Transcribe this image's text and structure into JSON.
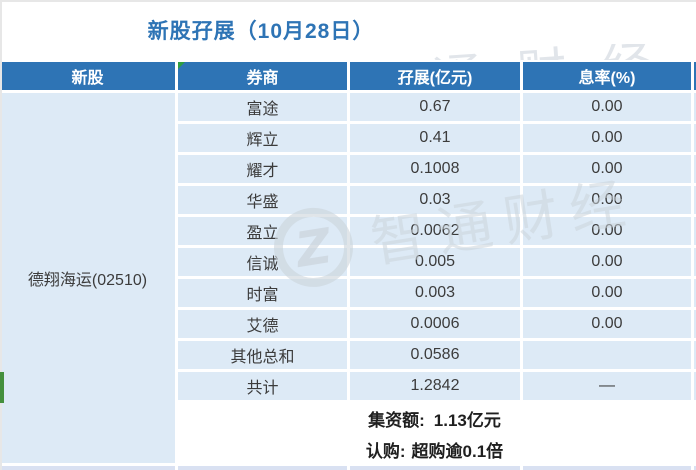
{
  "title": "新股孖展（10月28日）",
  "chart_data": {
    "type": "table",
    "title": "新股孖展（10月28日）",
    "columns": [
      "新股",
      "券商",
      "孖展(亿元)",
      "息率(%)"
    ],
    "stock": "德翔海运(02510)",
    "rows": [
      {
        "broker": "富途",
        "margin_yi": "0.67",
        "rate_pct": "0.00"
      },
      {
        "broker": "辉立",
        "margin_yi": "0.41",
        "rate_pct": "0.00"
      },
      {
        "broker": "耀才",
        "margin_yi": "0.1008",
        "rate_pct": "0.00"
      },
      {
        "broker": "华盛",
        "margin_yi": "0.03",
        "rate_pct": "0.00"
      },
      {
        "broker": "盈立",
        "margin_yi": "0.0062",
        "rate_pct": "0.00"
      },
      {
        "broker": "信诚",
        "margin_yi": "0.005",
        "rate_pct": "0.00"
      },
      {
        "broker": "时富",
        "margin_yi": "0.003",
        "rate_pct": "0.00"
      },
      {
        "broker": "艾德",
        "margin_yi": "0.0006",
        "rate_pct": "0.00"
      },
      {
        "broker": "其他总和",
        "margin_yi": "0.0586",
        "rate_pct": ""
      },
      {
        "broker": "共计",
        "margin_yi": "1.2842",
        "rate_pct": "—"
      }
    ],
    "footer": {
      "funding_label": "集资额:",
      "funding_value": "1.13亿元",
      "subscription_label": "认购:",
      "subscription_value": "超购逾0.1倍"
    }
  },
  "watermark": {
    "logo_letter": "Z",
    "brand": "智通财经"
  },
  "colors": {
    "header_blue": "#2E74B5",
    "title_blue": "#2E74B5",
    "row_light_blue": "#DDEAF6",
    "bottom_strip_blue": "#D9E1F2",
    "accent_green": "#2f9e41",
    "text_dark": "#3c3c3c"
  }
}
